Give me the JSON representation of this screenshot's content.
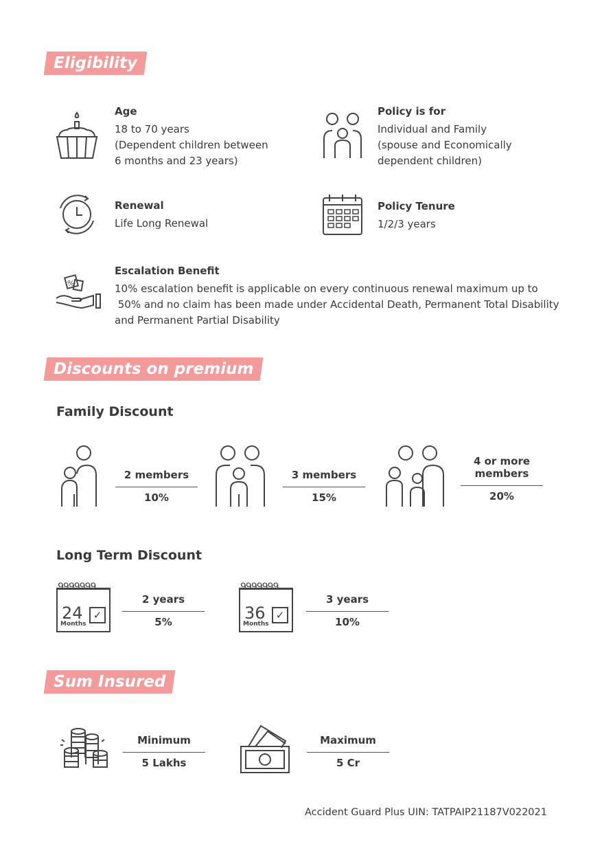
{
  "eligibility": {
    "heading": "Eligibility",
    "items": [
      {
        "icon": "cupcake-icon",
        "title": "Age",
        "lines": [
          "18  to 70 years",
          "(Dependent children between",
          "6 months and 23 years)"
        ]
      },
      {
        "icon": "family-icon",
        "title": "Policy is for",
        "lines": [
          "Individual and Family",
          "(spouse and Economically",
          "dependent children)"
        ]
      },
      {
        "icon": "renewal-clock-icon",
        "title": "Renewal",
        "lines": [
          "Life Long Renewal"
        ]
      },
      {
        "icon": "calendar-icon",
        "title": "Policy Tenure",
        "lines": [
          "1/2/3 years"
        ]
      },
      {
        "icon": "hand-discount-icon",
        "title": "Escalation Benefit",
        "lines": [
          "10% escalation benefit is applicable on every continuous renewal maximum up to",
          " 50% and no claim has been made under Accidental Death, Permanent Total Disability",
          "and Permanent Partial Disability"
        ]
      }
    ]
  },
  "discounts": {
    "heading": "Discounts on premium",
    "family": {
      "title": "Family Discount",
      "items": [
        {
          "label": "2 members",
          "value": "10%"
        },
        {
          "label": "3 members",
          "value": "15%"
        },
        {
          "label": "4 or more members",
          "value": "20%"
        }
      ]
    },
    "long_term": {
      "title": "Long Term Discount",
      "items": [
        {
          "calendar_number": "24",
          "calendar_unit": "Months",
          "label": "2 years",
          "value": "5%"
        },
        {
          "calendar_number": "36",
          "calendar_unit": "Months",
          "label": "3 years",
          "value": "10%"
        }
      ]
    }
  },
  "sum_insured": {
    "heading": "Sum Insured",
    "items": [
      {
        "icon": "coins-icon",
        "label": "Minimum",
        "value": "5 Lakhs"
      },
      {
        "icon": "banknotes-icon",
        "label": "Maximum",
        "value": "5 Cr"
      }
    ]
  },
  "footer": "Accident Guard Plus UIN: TATPAIP21187V022021",
  "colors": {
    "accent": "#f49a9a",
    "text": "#3a3a3a"
  }
}
